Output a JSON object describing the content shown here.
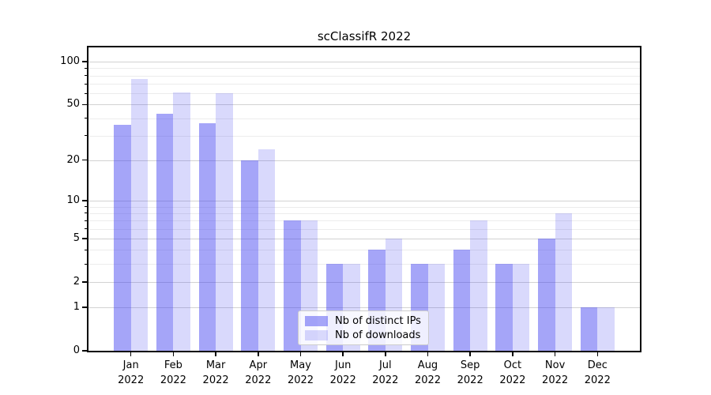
{
  "title": "scClassifR 2022",
  "colors": {
    "bar_dark": "rgba(66,66,240,0.48)",
    "bar_light": "rgba(66,66,240,0.2)",
    "grid_major": "#d2d2d2",
    "grid_minor": "#ececec",
    "spine": "#000000",
    "legend_border": "#cccccc"
  },
  "chart_data": {
    "type": "bar",
    "title": "scClassifR 2022",
    "xlabel": "",
    "ylabel": "",
    "y_scale": "log1p",
    "ylim": [
      0,
      126
    ],
    "grid": true,
    "legend_position": "lower center",
    "categories": [
      "Jan",
      "Feb",
      "Mar",
      "Apr",
      "May",
      "Jun",
      "Jul",
      "Aug",
      "Sep",
      "Oct",
      "Nov",
      "Dec"
    ],
    "year_label": "2022",
    "series": [
      {
        "name": "Nb of distinct IPs",
        "values": [
          36,
          43,
          37,
          20,
          7,
          3,
          4,
          3,
          4,
          3,
          5,
          1
        ]
      },
      {
        "name": "Nb of downloads",
        "values": [
          76,
          61,
          60,
          24,
          7,
          3,
          5,
          3,
          7,
          3,
          8,
          1
        ]
      }
    ],
    "y_major_ticks": [
      0,
      1,
      2,
      5,
      10,
      20,
      50,
      100
    ],
    "y_minor_ticks": [
      3,
      4,
      6,
      7,
      8,
      9,
      30,
      40,
      60,
      70,
      80,
      90
    ]
  }
}
